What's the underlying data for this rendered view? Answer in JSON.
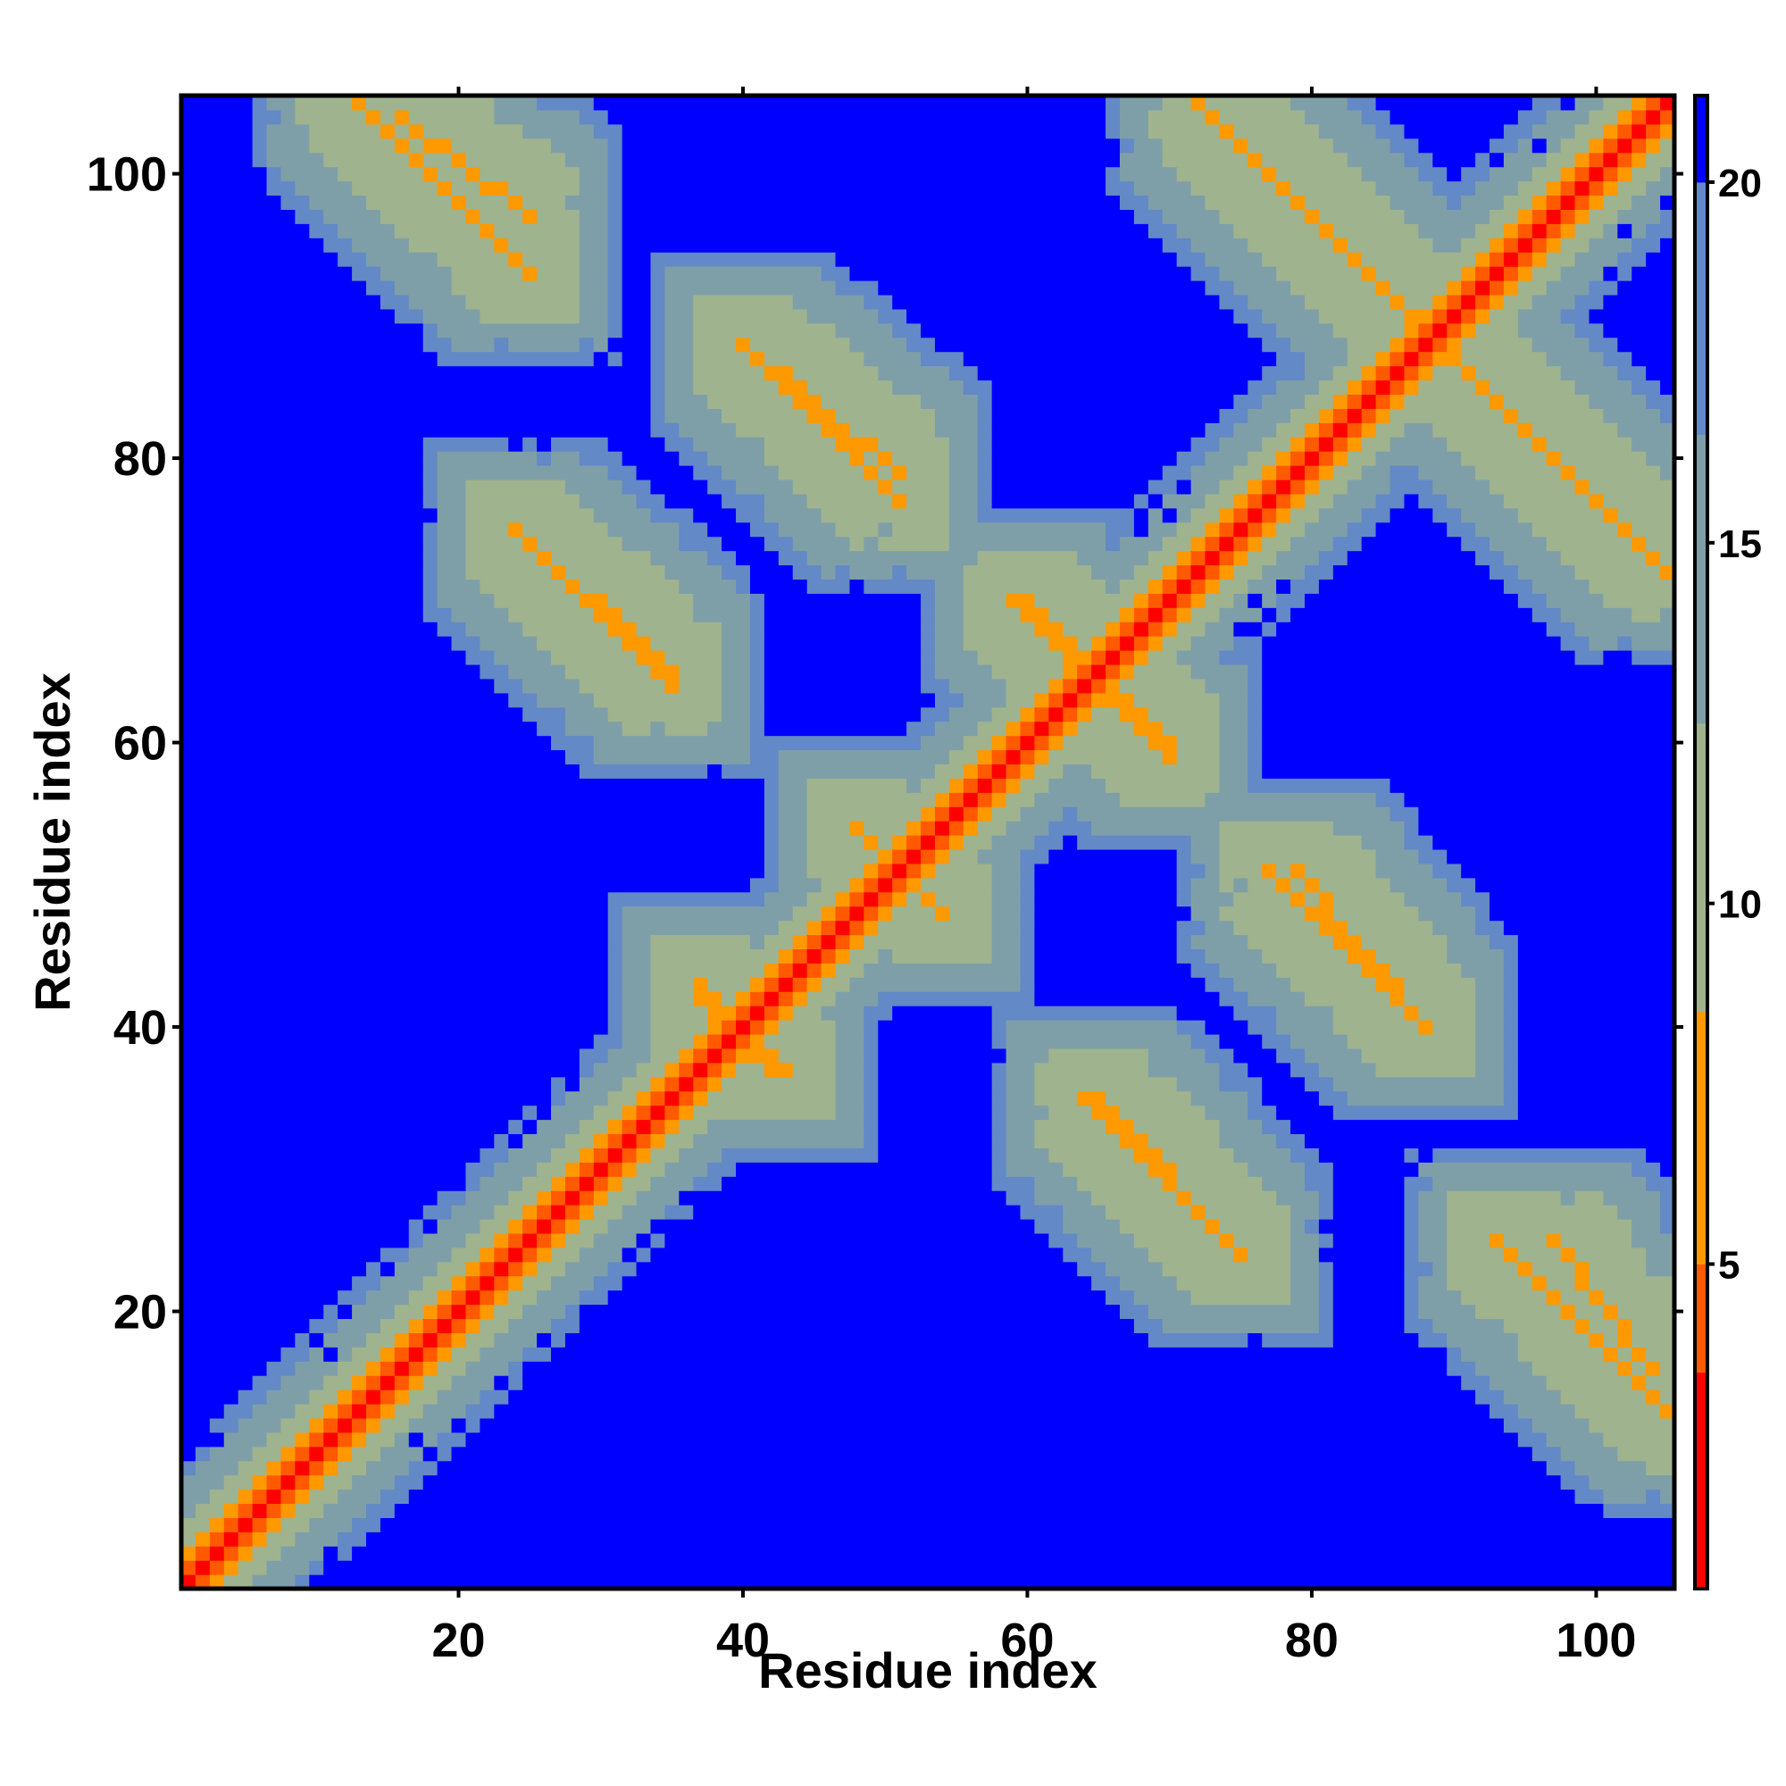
{
  "chart_data": {
    "type": "heatmap",
    "title": "",
    "xlabel": "Residue index",
    "ylabel": "Residue index",
    "n_residues": 105,
    "xlim": [
      1,
      105
    ],
    "ylim": [
      1,
      105
    ],
    "x_ticks": [
      20,
      40,
      60,
      80,
      100
    ],
    "y_ticks": [
      20,
      40,
      60,
      80,
      100
    ],
    "colorbar": {
      "ticks": [
        5,
        10,
        15,
        20
      ],
      "range": [
        0.5,
        21.2
      ],
      "bands": [
        {
          "from": 0.5,
          "to": 3.5,
          "color": "#ff0000"
        },
        {
          "from": 3.5,
          "to": 5.0,
          "color": "#ff5a00"
        },
        {
          "from": 5.0,
          "to": 8.5,
          "color": "#ff9900"
        },
        {
          "from": 8.5,
          "to": 12.5,
          "color": "#9fb38f"
        },
        {
          "from": 12.5,
          "to": 16.5,
          "color": "#7f9fa8"
        },
        {
          "from": 16.5,
          "to": 20.0,
          "color": "#6389c6"
        },
        {
          "from": 20.0,
          "to": 21.2,
          "color": "#0000ff"
        }
      ]
    },
    "background_value": 21,
    "background_color": "#0000ff",
    "features": [
      {
        "kind": "diagonal",
        "offset": 0,
        "value": 1.5
      },
      {
        "kind": "diagonal",
        "offset": 1,
        "value": 4.5
      },
      {
        "kind": "diagonal",
        "offset": 2,
        "value": 7.0
      },
      {
        "kind": "diagonal",
        "offset": 3,
        "value": 10.0
      },
      {
        "kind": "diagonal",
        "offset": 4,
        "value": 12.0
      },
      {
        "kind": "diagonal",
        "offset": 5,
        "value": 15.0
      },
      {
        "kind": "antidiagonal_segment",
        "x_range": [
          12,
          25
        ],
        "y_range": [
          93,
          106
        ],
        "value": 7.0
      },
      {
        "kind": "antidiagonal_segment",
        "x_range": [
          40,
          51
        ],
        "y_range": [
          77,
          88
        ],
        "value": 7.0
      },
      {
        "kind": "antidiagonal_segment",
        "x_range": [
          24,
          35
        ],
        "y_range": [
          64,
          75
        ],
        "value": 7.0
      },
      {
        "kind": "antidiagonal_segment",
        "x_range": [
          72,
          88
        ],
        "y_range": [
          89,
          105
        ],
        "value": 7.0
      },
      {
        "kind": "antidiagonal_segment",
        "x_range": [
          88,
          104
        ],
        "y_range": [
          73,
          89
        ],
        "value": 7.0
      },
      {
        "kind": "antidiagonal_segment",
        "x_range": [
          60,
          70
        ],
        "y_range": [
          59,
          70
        ],
        "value": 7.0
      },
      {
        "kind": "antidiagonal_segment",
        "x_range": [
          48,
          54
        ],
        "y_range": [
          48,
          54
        ],
        "value": 7.0
      },
      {
        "kind": "antidiagonal_segment",
        "x_range": [
          79,
          88
        ],
        "y_range": [
          40,
          51
        ],
        "value": 7.0
      },
      {
        "kind": "antidiagonal_segment",
        "x_range": [
          65,
          74
        ],
        "y_range": [
          25,
          35
        ],
        "value": 7.0
      },
      {
        "kind": "antidiagonal_segment",
        "x_range": [
          97,
          104
        ],
        "y_range": [
          16,
          25
        ],
        "value": 7.0
      },
      {
        "kind": "antidiagonal_segment",
        "x_range": [
          37,
          42
        ],
        "y_range": [
          37,
          43
        ],
        "value": 7.0
      }
    ]
  }
}
